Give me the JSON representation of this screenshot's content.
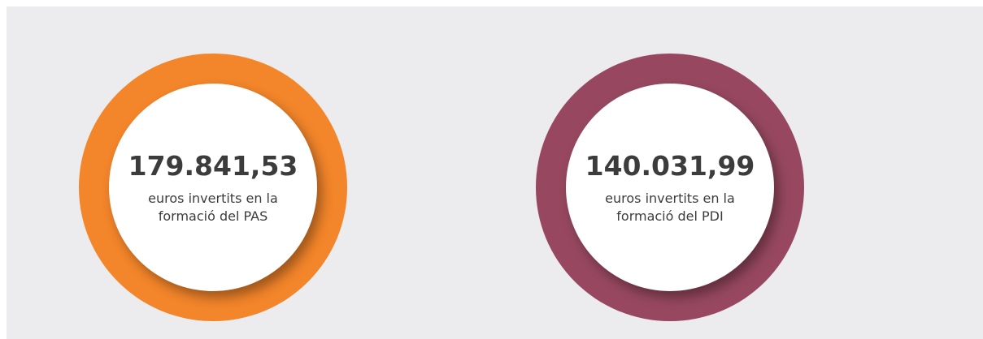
{
  "cards": [
    {
      "value": "179.841,53",
      "label": "euros invertits en la formació del PAS",
      "color": "#f3852a"
    },
    {
      "value": "140.031,99",
      "label": "euros invertits en la formació del PDI",
      "color": "#974860"
    }
  ]
}
